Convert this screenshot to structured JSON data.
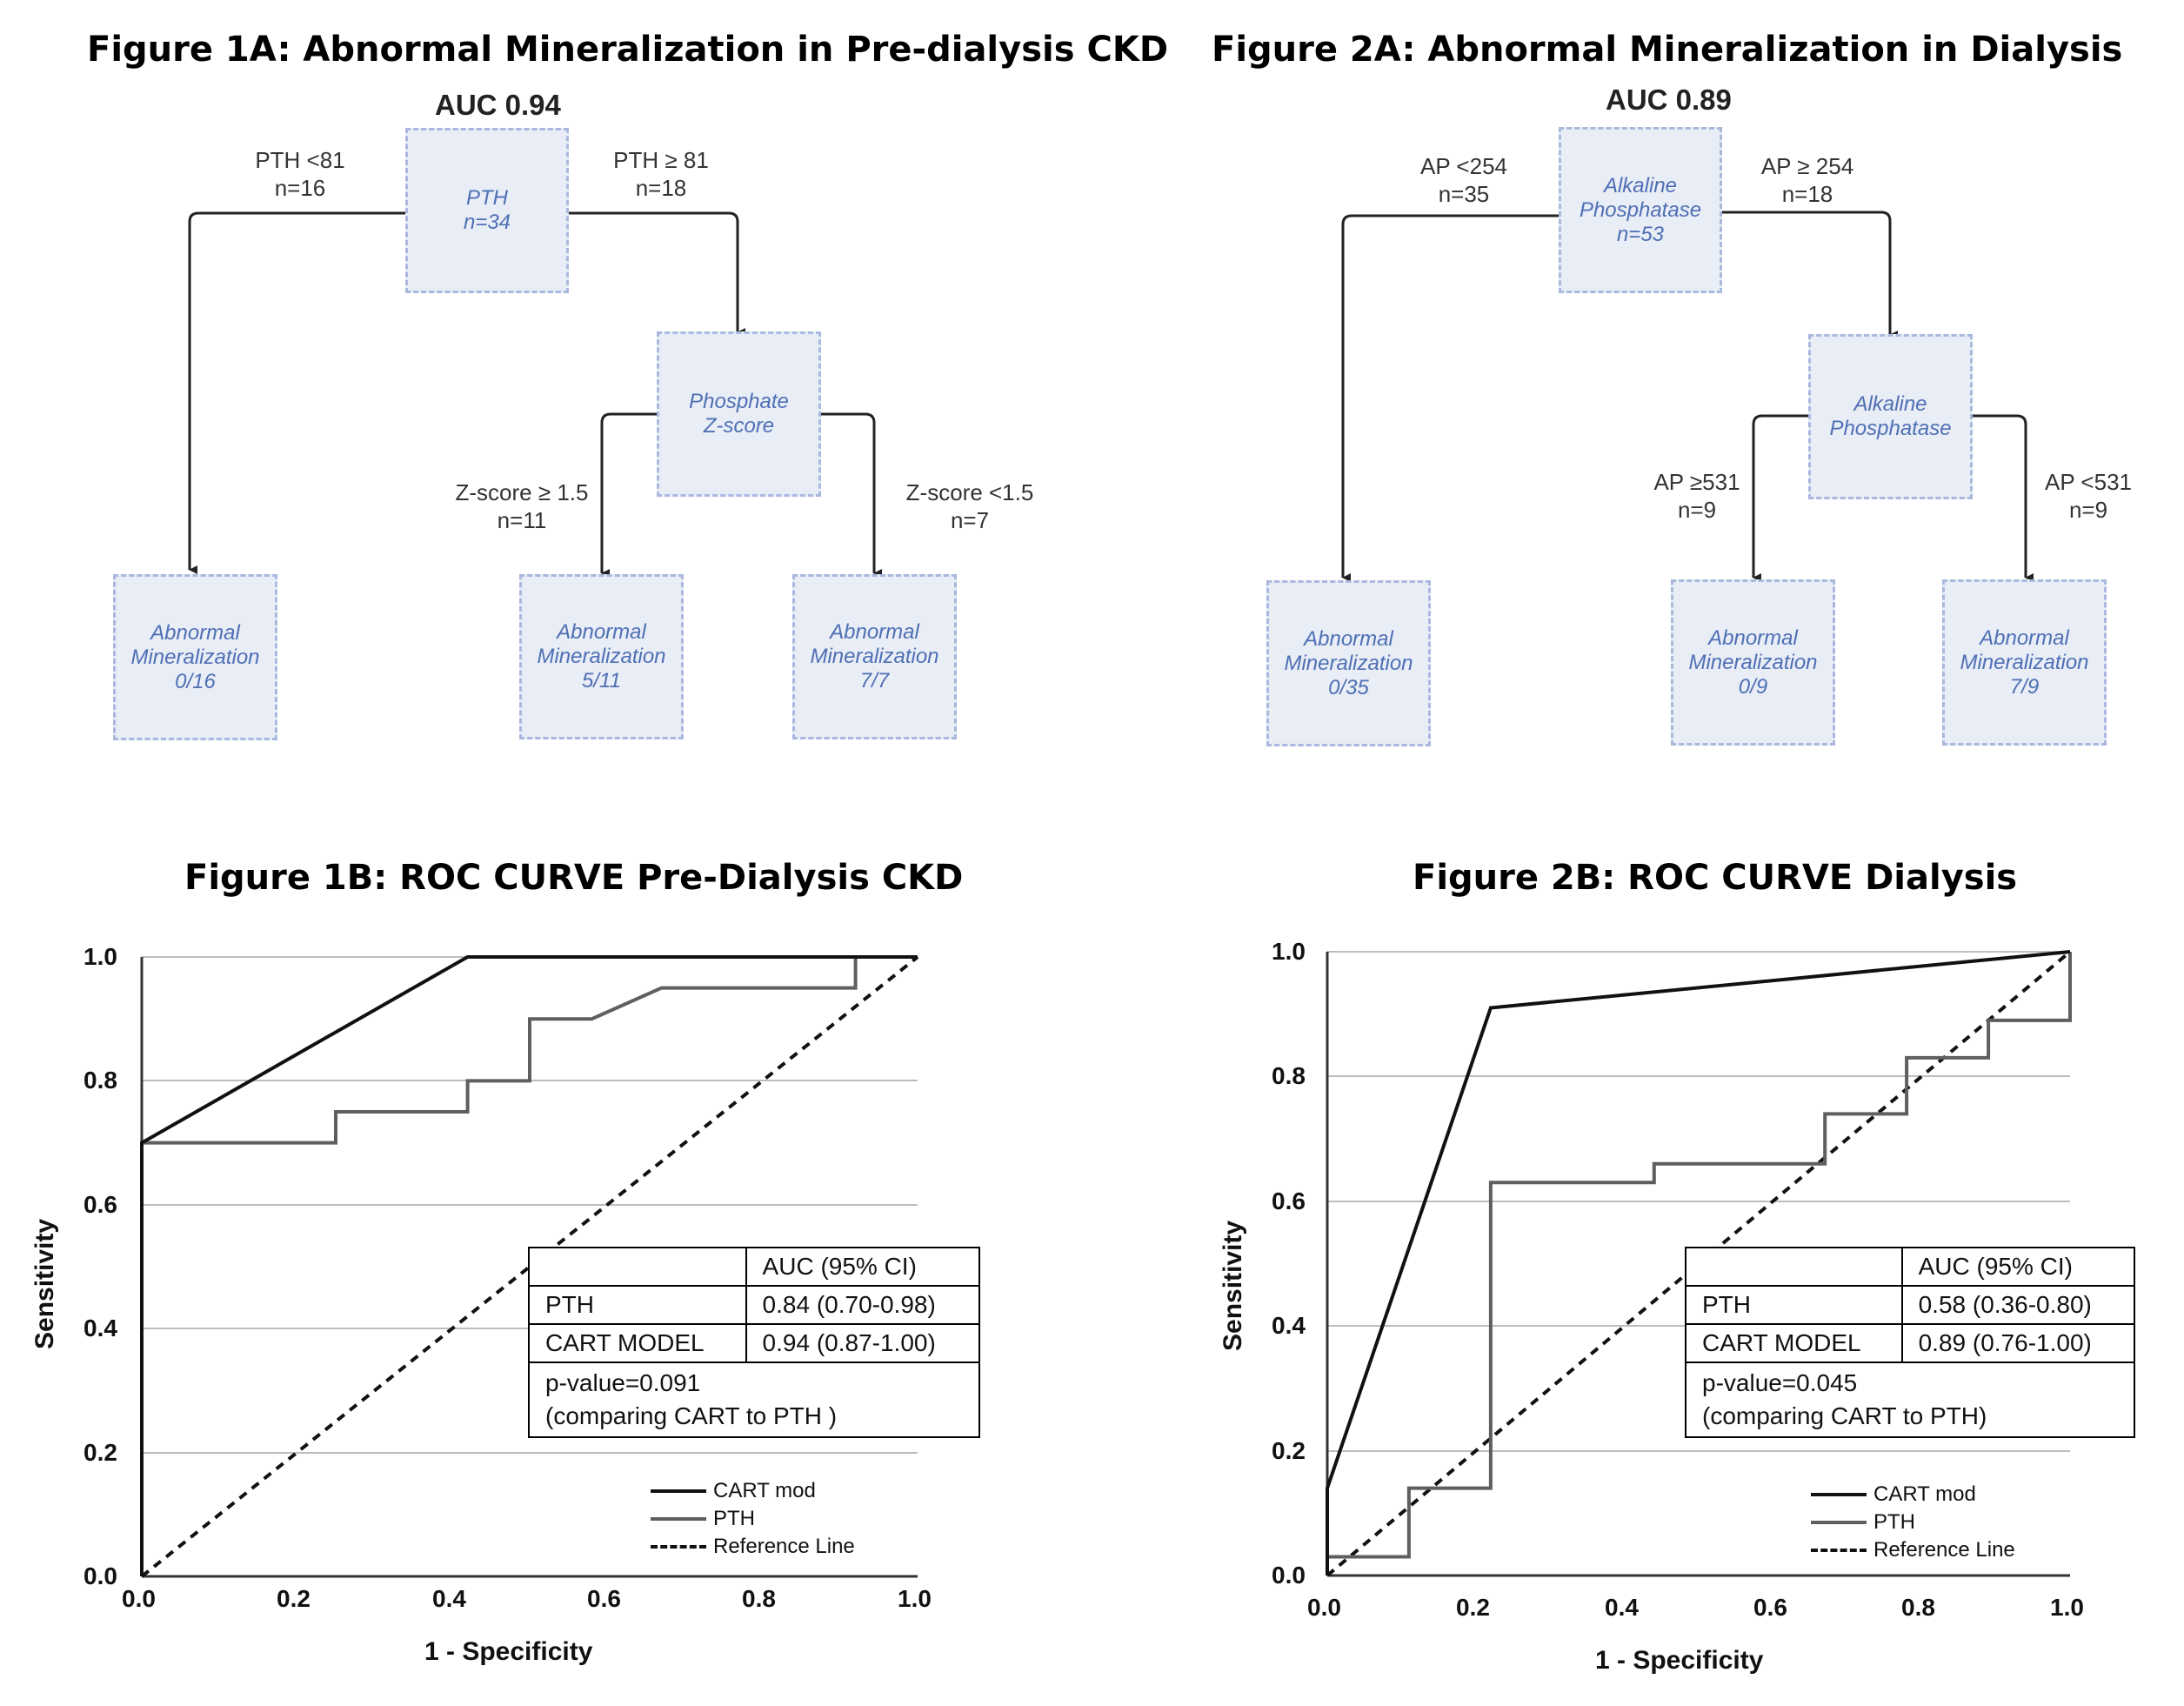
{
  "figures": {
    "fig1a": {
      "title": "Figure 1A: Abnormal Mineralization in Pre-dialysis CKD",
      "auc": "AUC 0.94",
      "root": "PTH\nn=34",
      "mid": "Phosphate\nZ-score",
      "leaf_left": "Abnormal\nMineralization\n0/16",
      "leaf_mid": "Abnormal\nMineralization\n5/11",
      "leaf_right": "Abnormal\nMineralization\n7/7",
      "split_left": "PTH <81\nn=16",
      "split_right": "PTH ≥ 81\nn=18",
      "split_mid_left": "Z-score ≥ 1.5\nn=11",
      "split_mid_right": "Z-score <1.5\nn=7"
    },
    "fig2a": {
      "title": "Figure 2A: Abnormal Mineralization in Dialysis",
      "auc": "AUC 0.89",
      "root": "Alkaline\nPhosphatase\nn=53",
      "mid": "Alkaline\nPhosphatase",
      "leaf_left": "Abnormal\nMineralization\n0/35",
      "leaf_mid": "Abnormal\nMineralization\n0/9",
      "leaf_right": "Abnormal\nMineralization\n7/9",
      "split_left": "AP <254\nn=35",
      "split_right": "AP ≥ 254\nn=18",
      "split_mid_left": "AP ≥531\nn=9",
      "split_mid_right": "AP <531\nn=9"
    },
    "fig1b": {
      "title": "Figure 1B: ROC CURVE Pre-Dialysis CKD",
      "table": {
        "header": "AUC (95% CI)",
        "row1_label": "PTH",
        "row1_value": "0.84 (0.70-0.98)",
        "row2_label": "CART MODEL",
        "row2_value": "0.94 (0.87-1.00)",
        "note": "p-value=0.091\n(comparing CART to PTH )"
      },
      "legend": [
        "CART mod",
        "PTH",
        "Reference Line"
      ]
    },
    "fig2b": {
      "title": "Figure 2B: ROC CURVE Dialysis",
      "table": {
        "header": "AUC (95% CI)",
        "row1_label": "PTH",
        "row1_value": "0.58 (0.36-0.80)",
        "row2_label": "CART MODEL",
        "row2_value": "0.89 (0.76-1.00)",
        "note": "p-value=0.045\n(comparing CART to PTH)"
      },
      "legend": [
        "CART mod",
        "PTH",
        "Reference Line"
      ]
    }
  },
  "colors": {
    "cart": "#111111",
    "pth": "#5f5f5f",
    "reference": "#111111",
    "box_fill": "#e8edf6",
    "box_text": "#4f6fb5"
  },
  "chart_data": [
    {
      "type": "line",
      "title": "Figure 1B: ROC CURVE Pre-Dialysis CKD",
      "xlabel": "1 - Specificity",
      "ylabel": "Sensitivity",
      "xlim": [
        0,
        1
      ],
      "ylim": [
        0,
        1
      ],
      "ticks": [
        "0.0",
        "0.2",
        "0.4",
        "0.6",
        "0.8",
        "1.0"
      ],
      "grid": "horizontal",
      "legend_position": "bottom-right",
      "series": [
        {
          "name": "CART mod",
          "x": [
            0,
            0,
            0.42,
            1.0
          ],
          "y": [
            0,
            0.7,
            1.0,
            1.0
          ]
        },
        {
          "name": "PTH",
          "x": [
            0,
            0,
            0.25,
            0.25,
            0.42,
            0.42,
            0.5,
            0.5,
            0.58,
            0.67,
            0.92,
            0.92,
            1.0
          ],
          "y": [
            0,
            0.7,
            0.7,
            0.75,
            0.75,
            0.8,
            0.8,
            0.9,
            0.9,
            0.95,
            0.95,
            1.0,
            1.0
          ]
        },
        {
          "name": "Reference Line",
          "x": [
            0,
            1
          ],
          "y": [
            0,
            1
          ]
        }
      ]
    },
    {
      "type": "line",
      "title": "Figure 2B: ROC CURVE Dialysis",
      "xlabel": "1 - Specificity",
      "ylabel": "Sensitivity",
      "xlim": [
        0,
        1
      ],
      "ylim": [
        0,
        1
      ],
      "ticks": [
        "0.0",
        "0.2",
        "0.4",
        "0.6",
        "0.8",
        "1.0"
      ],
      "grid": "horizontal",
      "legend_position": "bottom-right",
      "series": [
        {
          "name": "CART mod",
          "x": [
            0,
            0,
            0.22,
            1.0
          ],
          "y": [
            0,
            0.14,
            0.91,
            1.0
          ]
        },
        {
          "name": "PTH",
          "x": [
            0,
            0,
            0.11,
            0.11,
            0.22,
            0.22,
            0.44,
            0.44,
            0.67,
            0.67,
            0.78,
            0.78,
            0.89,
            0.89,
            1.0,
            1.0
          ],
          "y": [
            0,
            0.03,
            0.03,
            0.14,
            0.14,
            0.63,
            0.63,
            0.66,
            0.66,
            0.74,
            0.74,
            0.83,
            0.83,
            0.89,
            0.89,
            1.0
          ]
        },
        {
          "name": "Reference Line",
          "x": [
            0,
            1
          ],
          "y": [
            0,
            1
          ]
        }
      ]
    }
  ]
}
